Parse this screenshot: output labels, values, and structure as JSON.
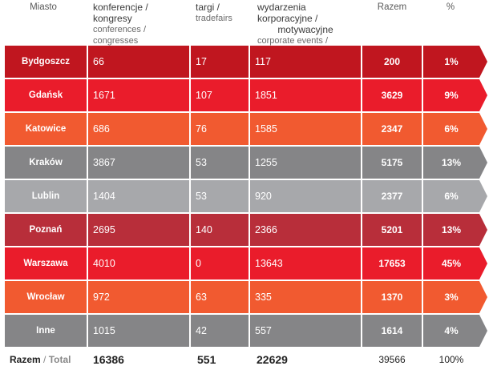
{
  "header": {
    "city": "Miasto",
    "conf_pl": "konferencje / kongresy",
    "conf_en": "conferences / congresses",
    "fair_pl": "targi /",
    "fair_en": "tradefairs",
    "corp_pl1": "wydarzenia korporacyjne /",
    "corp_pl2": "motywacyjne",
    "corp_en": "corporate events  / incentive",
    "total": "Razem",
    "pct": "%"
  },
  "rows": [
    {
      "city": "Bydgoszcz",
      "conf": "66",
      "fair": "17",
      "corp": "117",
      "total": "200",
      "pct": "1%",
      "color": "#c0161f"
    },
    {
      "city": "Gdańsk",
      "conf": "1671",
      "fair": "107",
      "corp": "1851",
      "total": "3629",
      "pct": "9%",
      "color": "#ea1c2b"
    },
    {
      "city": "Katowice",
      "conf": "686",
      "fair": "76",
      "corp": "1585",
      "total": "2347",
      "pct": "6%",
      "color": "#f15a30"
    },
    {
      "city": "Kraków",
      "conf": "3867",
      "fair": "53",
      "corp": "1255",
      "total": "5175",
      "pct": "13%",
      "color": "#858587"
    },
    {
      "city": "Lublin",
      "conf": "1404",
      "fair": "53",
      "corp": "920",
      "total": "2377",
      "pct": "6%",
      "color": "#a7a8ab"
    },
    {
      "city": "Poznań",
      "conf": "2695",
      "fair": "140",
      "corp": "2366",
      "total": "5201",
      "pct": "13%",
      "color": "#b82e3a"
    },
    {
      "city": "Warszawa",
      "conf": "4010",
      "fair": "0",
      "corp": "13643",
      "total": "17653",
      "pct": "45%",
      "color": "#ea1c2b"
    },
    {
      "city": "Wrocław",
      "conf": "972",
      "fair": "63",
      "corp": "335",
      "total": "1370",
      "pct": "3%",
      "color": "#f15a30"
    },
    {
      "city": "Inne",
      "conf": "1015",
      "fair": "42",
      "corp": "557",
      "total": "1614",
      "pct": "4%",
      "color": "#858587"
    }
  ],
  "footer": {
    "label_pl": "Razem",
    "sep": " / ",
    "label_en": "Total",
    "conf": "16386",
    "fair": "551",
    "corp": "22629",
    "total": "39566",
    "pct": "100%"
  }
}
